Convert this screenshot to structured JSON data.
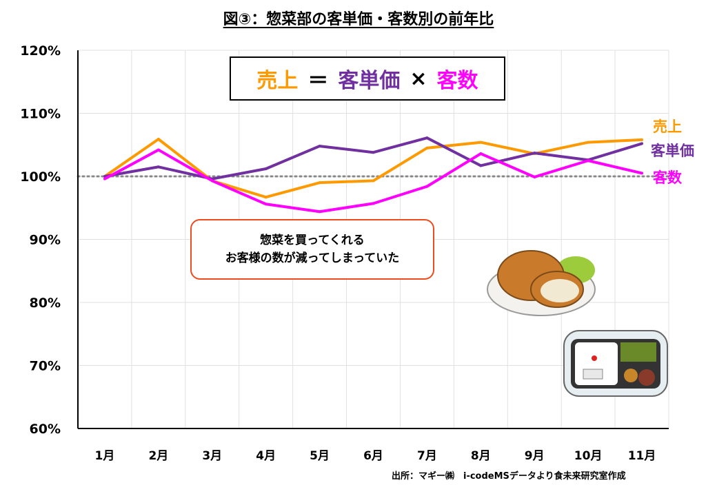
{
  "title": "図③：惣菜部の客単価・客数別の前年比",
  "formula": {
    "sales": "売上",
    "eq": "＝",
    "unit_price": "客単価",
    "times": "×",
    "customers": "客数"
  },
  "note": {
    "line1": "惣菜を買ってくれる",
    "line2": "お客様の数が減ってしまっていた"
  },
  "source": "出所：マギー㈱　i-codeMSデータより食未来研究室作成",
  "colors": {
    "sales": "#ff9900",
    "unit_price": "#7030a0",
    "customers": "#ff00ff",
    "note_border": "#ee4a1c"
  },
  "chart_data": {
    "type": "line",
    "title": "図③：惣菜部の客単価・客数別の前年比",
    "categories": [
      "1月",
      "2月",
      "3月",
      "4月",
      "5月",
      "6月",
      "7月",
      "8月",
      "9月",
      "10月",
      "11月"
    ],
    "ylim": [
      60,
      120
    ],
    "yticks": [
      "60%",
      "70%",
      "80%",
      "90%",
      "100%",
      "110%",
      "120%"
    ],
    "ytick_values": [
      60,
      70,
      80,
      90,
      100,
      110,
      120
    ],
    "reference_line": 100,
    "grid": true,
    "series": [
      {
        "name": "売上",
        "color": "#ff9900",
        "values": [
          100.0,
          105.9,
          99.3,
          96.7,
          99.0,
          99.3,
          104.5,
          105.4,
          103.6,
          105.4,
          105.8
        ]
      },
      {
        "name": "客単価",
        "color": "#7030a0",
        "values": [
          100.0,
          101.5,
          99.6,
          101.2,
          104.8,
          103.8,
          106.1,
          101.7,
          103.7,
          102.6,
          105.2
        ]
      },
      {
        "name": "客数",
        "color": "#ff00ff",
        "values": [
          99.6,
          104.2,
          99.3,
          95.6,
          94.4,
          95.7,
          98.4,
          103.6,
          99.9,
          102.5,
          100.5
        ]
      }
    ]
  }
}
